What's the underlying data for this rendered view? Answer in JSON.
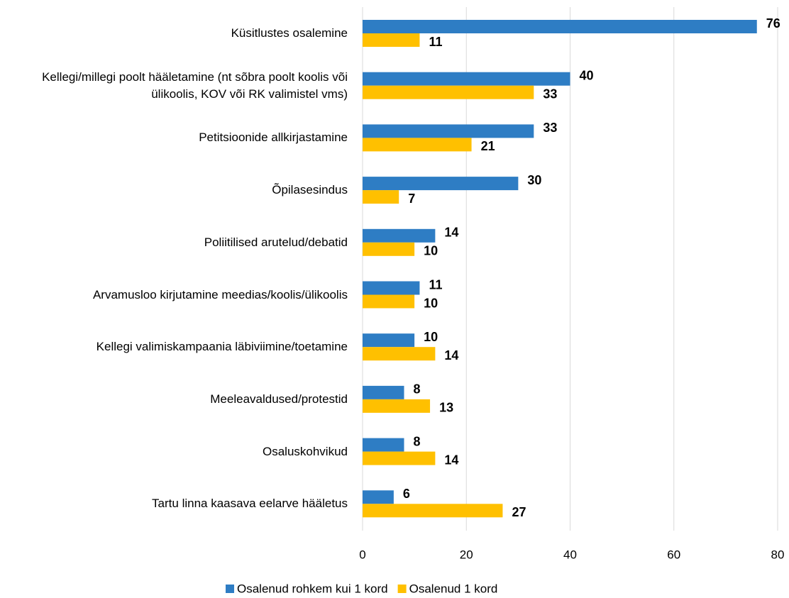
{
  "chart_data": {
    "type": "bar",
    "orientation": "horizontal",
    "categories": [
      "Küsitlustes osalemine",
      "Kellegi/millegi poolt hääletamine (nt sõbra poolt koolis või ülikoolis, KOV või RK valimistel vms)",
      "Petitsioonide allkirjastamine",
      "Õpilasesindus",
      "Poliitilised arutelud/debatid",
      "Arvamusloo kirjutamine meedias/koolis/ülikoolis",
      "Kellegi valimiskampaania läbiviimine/toetamine",
      "Meeleavaldused/protestid",
      "Osaluskohvikud",
      "Tartu linna kaasava eelarve hääletus"
    ],
    "series": [
      {
        "name": "Osalenud rohkem kui 1 kord",
        "color": "#2e7dc4",
        "values": [
          76,
          40,
          33,
          30,
          14,
          11,
          10,
          8,
          8,
          6
        ]
      },
      {
        "name": "Osalenud 1 kord",
        "color": "#ffc000",
        "values": [
          11,
          33,
          21,
          7,
          10,
          10,
          14,
          13,
          14,
          27
        ]
      }
    ],
    "xlim": [
      0,
      80
    ],
    "xticks": [
      0,
      20,
      40,
      60,
      80
    ],
    "grid": true,
    "legend": "bottom"
  }
}
